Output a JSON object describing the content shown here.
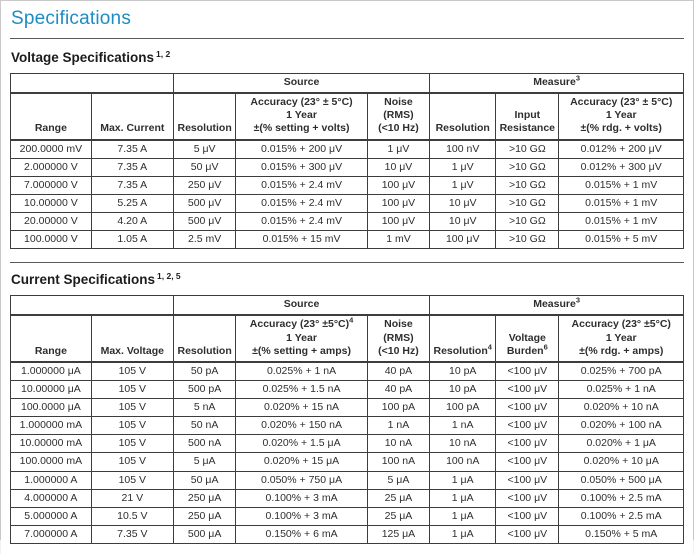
{
  "page": {
    "title": "Specifications"
  },
  "voltage_section": {
    "title": "Voltage Specifications",
    "title_sup": "1, 2"
  },
  "current_section": {
    "title": "Current Specifications",
    "title_sup": "1, 2, 5"
  },
  "voltage_table": {
    "source_group": "Source",
    "measure_group": "Measure",
    "measure_group_sup": "3",
    "headers": {
      "range": "Range",
      "max_current": "Max. Current",
      "src_resolution": "Resolution",
      "src_acc_l1": "Accuracy (23° ± 5°C)",
      "src_acc_l2": "1 Year",
      "src_acc_l3": "±(% setting + volts)",
      "noise_l1": "Noise (RMS)",
      "noise_l2": "(<10 Hz)",
      "meas_resolution": "Resolution",
      "input_res_l1": "Input",
      "input_res_l2": "Resistance",
      "meas_acc_l1": "Accuracy (23° ± 5°C)",
      "meas_acc_l2": "1 Year",
      "meas_acc_l3": "±(% rdg. + volts)"
    },
    "rows": [
      [
        "200.0000 mV",
        "7.35 A",
        "5 μV",
        "0.015% + 200 μV",
        "1 μV",
        "100 nV",
        ">10 GΩ",
        "0.012% + 200 μV"
      ],
      [
        "2.000000 V",
        "7.35 A",
        "50 μV",
        "0.015% + 300 μV",
        "10 μV",
        "1 μV",
        ">10 GΩ",
        "0.012% + 300 μV"
      ],
      [
        "7.000000 V",
        "7.35 A",
        "250 μV",
        "0.015% + 2.4 mV",
        "100 μV",
        "1 μV",
        ">10 GΩ",
        "0.015% + 1 mV"
      ],
      [
        "10.00000 V",
        "5.25 A",
        "500 μV",
        "0.015% + 2.4 mV",
        "100 μV",
        "10 μV",
        ">10 GΩ",
        "0.015% + 1 mV"
      ],
      [
        "20.00000 V",
        "4.20 A",
        "500 μV",
        "0.015% + 2.4 mV",
        "100 μV",
        "10 μV",
        ">10 GΩ",
        "0.015% + 1 mV"
      ],
      [
        "100.0000 V",
        "1.05 A",
        "2.5 mV",
        "0.015% + 15 mV",
        "1 mV",
        "100 μV",
        ">10 GΩ",
        "0.015% + 5 mV"
      ]
    ]
  },
  "current_table": {
    "source_group": "Source",
    "measure_group": "Measure",
    "measure_group_sup": "3",
    "headers": {
      "range": "Range",
      "max_voltage": "Max. Voltage",
      "src_resolution": "Resolution",
      "src_acc_l1": "Accuracy (23° ±5°C)",
      "src_acc_sup": "4",
      "src_acc_l2": "1 Year",
      "src_acc_l3": "±(% setting + amps)",
      "noise_l1": "Noise (RMS)",
      "noise_l2": "(<10 Hz)",
      "meas_resolution": "Resolution",
      "meas_resolution_sup": "4",
      "burden_l1": "Voltage",
      "burden_l2": "Burden",
      "burden_sup": "6",
      "meas_acc_l1": "Accuracy (23° ±5°C)",
      "meas_acc_l2": "1 Year",
      "meas_acc_l3": "±(% rdg. + amps)"
    },
    "rows": [
      [
        "1.000000 μA",
        "105 V",
        "50 pA",
        "0.025% + 1 nA",
        "40 pA",
        "10 pA",
        "<100 μV",
        "0.025% + 700 pA"
      ],
      [
        "10.00000 μA",
        "105 V",
        "500 pA",
        "0.025% + 1.5 nA",
        "40 pA",
        "10 pA",
        "<100 μV",
        "0.025% + 1 nA"
      ],
      [
        "100.0000 μA",
        "105 V",
        "5 nA",
        "0.020% + 15 nA",
        "100 pA",
        "100 pA",
        "<100 μV",
        "0.020% + 10 nA"
      ],
      [
        "1.000000 mA",
        "105 V",
        "50 nA",
        "0.020% + 150 nA",
        "1 nA",
        "1 nA",
        "<100 μV",
        "0.020% + 100 nA"
      ],
      [
        "10.00000 mA",
        "105 V",
        "500 nA",
        "0.020% + 1.5 μA",
        "10 nA",
        "10 nA",
        "<100 μV",
        "0.020% + 1 μA"
      ],
      [
        "100.0000 mA",
        "105 V",
        "5 μA",
        "0.020% + 15 μA",
        "100 nA",
        "100 nA",
        "<100 μV",
        "0.020% + 10 μA"
      ],
      [
        "1.000000 A",
        "105 V",
        "50 μA",
        "0.050% + 750 μA",
        "5 μA",
        "1 μA",
        "<100 μV",
        "0.050% + 500 μA"
      ],
      [
        "4.000000 A",
        "21 V",
        "250 μA",
        "0.100% + 3 mA",
        "25 μA",
        "1 μA",
        "<100 μV",
        "0.100% + 2.5 mA"
      ],
      [
        "5.000000 A",
        "10.5 V",
        "250 μA",
        "0.100% + 3 mA",
        "25 μA",
        "1 μA",
        "<100 μV",
        "0.100% + 2.5 mA"
      ],
      [
        "7.000000 A",
        "7.35 V",
        "500 μA",
        "0.150% + 6 mA",
        "125 μA",
        "1 μA",
        "<100 μV",
        "0.150% + 5 mA"
      ]
    ]
  }
}
